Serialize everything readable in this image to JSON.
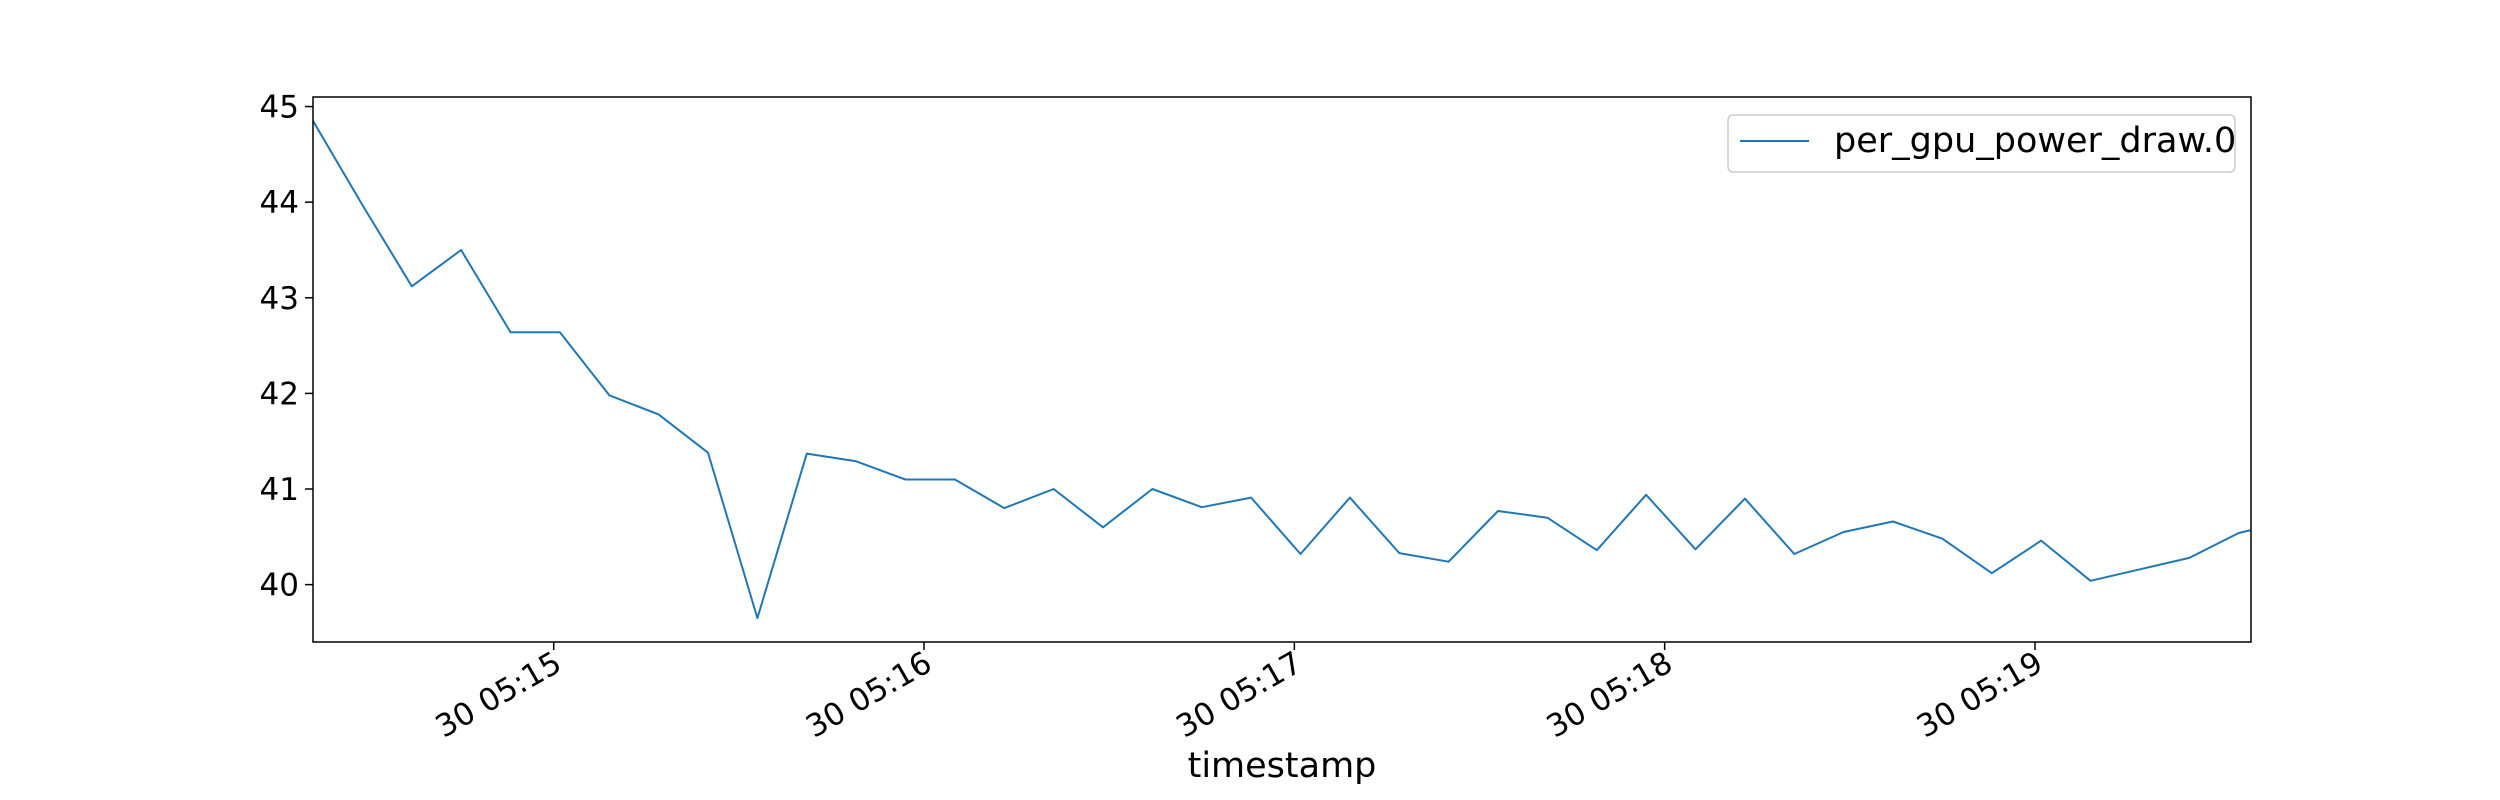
{
  "chart_data": {
    "type": "line",
    "title": "",
    "xlabel": "timestamp",
    "ylabel": "",
    "x_ticks": [
      "30 05:15",
      "30 05:16",
      "30 05:17",
      "30 05:18",
      "30 05:19"
    ],
    "y_ticks": [
      40,
      41,
      42,
      43,
      44,
      45
    ],
    "ylim": [
      39.4,
      45.1
    ],
    "xlim": [
      "05:14:21",
      "05:19:35"
    ],
    "legend_position": "upper right",
    "grid": false,
    "series": [
      {
        "name": "per_gpu_power_draw.0",
        "color": "#1f77b4",
        "x": [
          "05:14:21",
          "05:14:29",
          "05:14:37",
          "05:14:45",
          "05:14:53",
          "05:15:01",
          "05:15:09",
          "05:15:17",
          "05:15:25",
          "05:15:33",
          "05:15:41",
          "05:15:49",
          "05:15:57",
          "05:16:05",
          "05:16:13",
          "05:16:21",
          "05:16:29",
          "05:16:37",
          "05:16:45",
          "05:16:53",
          "05:17:01",
          "05:17:09",
          "05:17:17",
          "05:17:25",
          "05:17:33",
          "05:17:41",
          "05:17:49",
          "05:17:57",
          "05:18:05",
          "05:18:13",
          "05:18:21",
          "05:18:29",
          "05:18:37",
          "05:18:45",
          "05:18:53",
          "05:19:01",
          "05:19:09",
          "05:19:17",
          "05:19:25",
          "05:19:33",
          "05:19:35"
        ],
        "values": [
          44.85,
          43.97,
          43.12,
          43.5,
          42.64,
          42.64,
          41.98,
          41.78,
          41.38,
          39.65,
          41.37,
          41.29,
          41.1,
          41.1,
          40.8,
          41.0,
          40.6,
          41.0,
          40.81,
          40.91,
          40.32,
          40.91,
          40.33,
          40.24,
          40.77,
          40.7,
          40.36,
          40.94,
          40.37,
          40.9,
          40.32,
          40.55,
          40.66,
          40.48,
          40.12,
          40.46,
          40.04,
          40.16,
          40.28,
          40.54,
          40.57
        ]
      }
    ]
  }
}
